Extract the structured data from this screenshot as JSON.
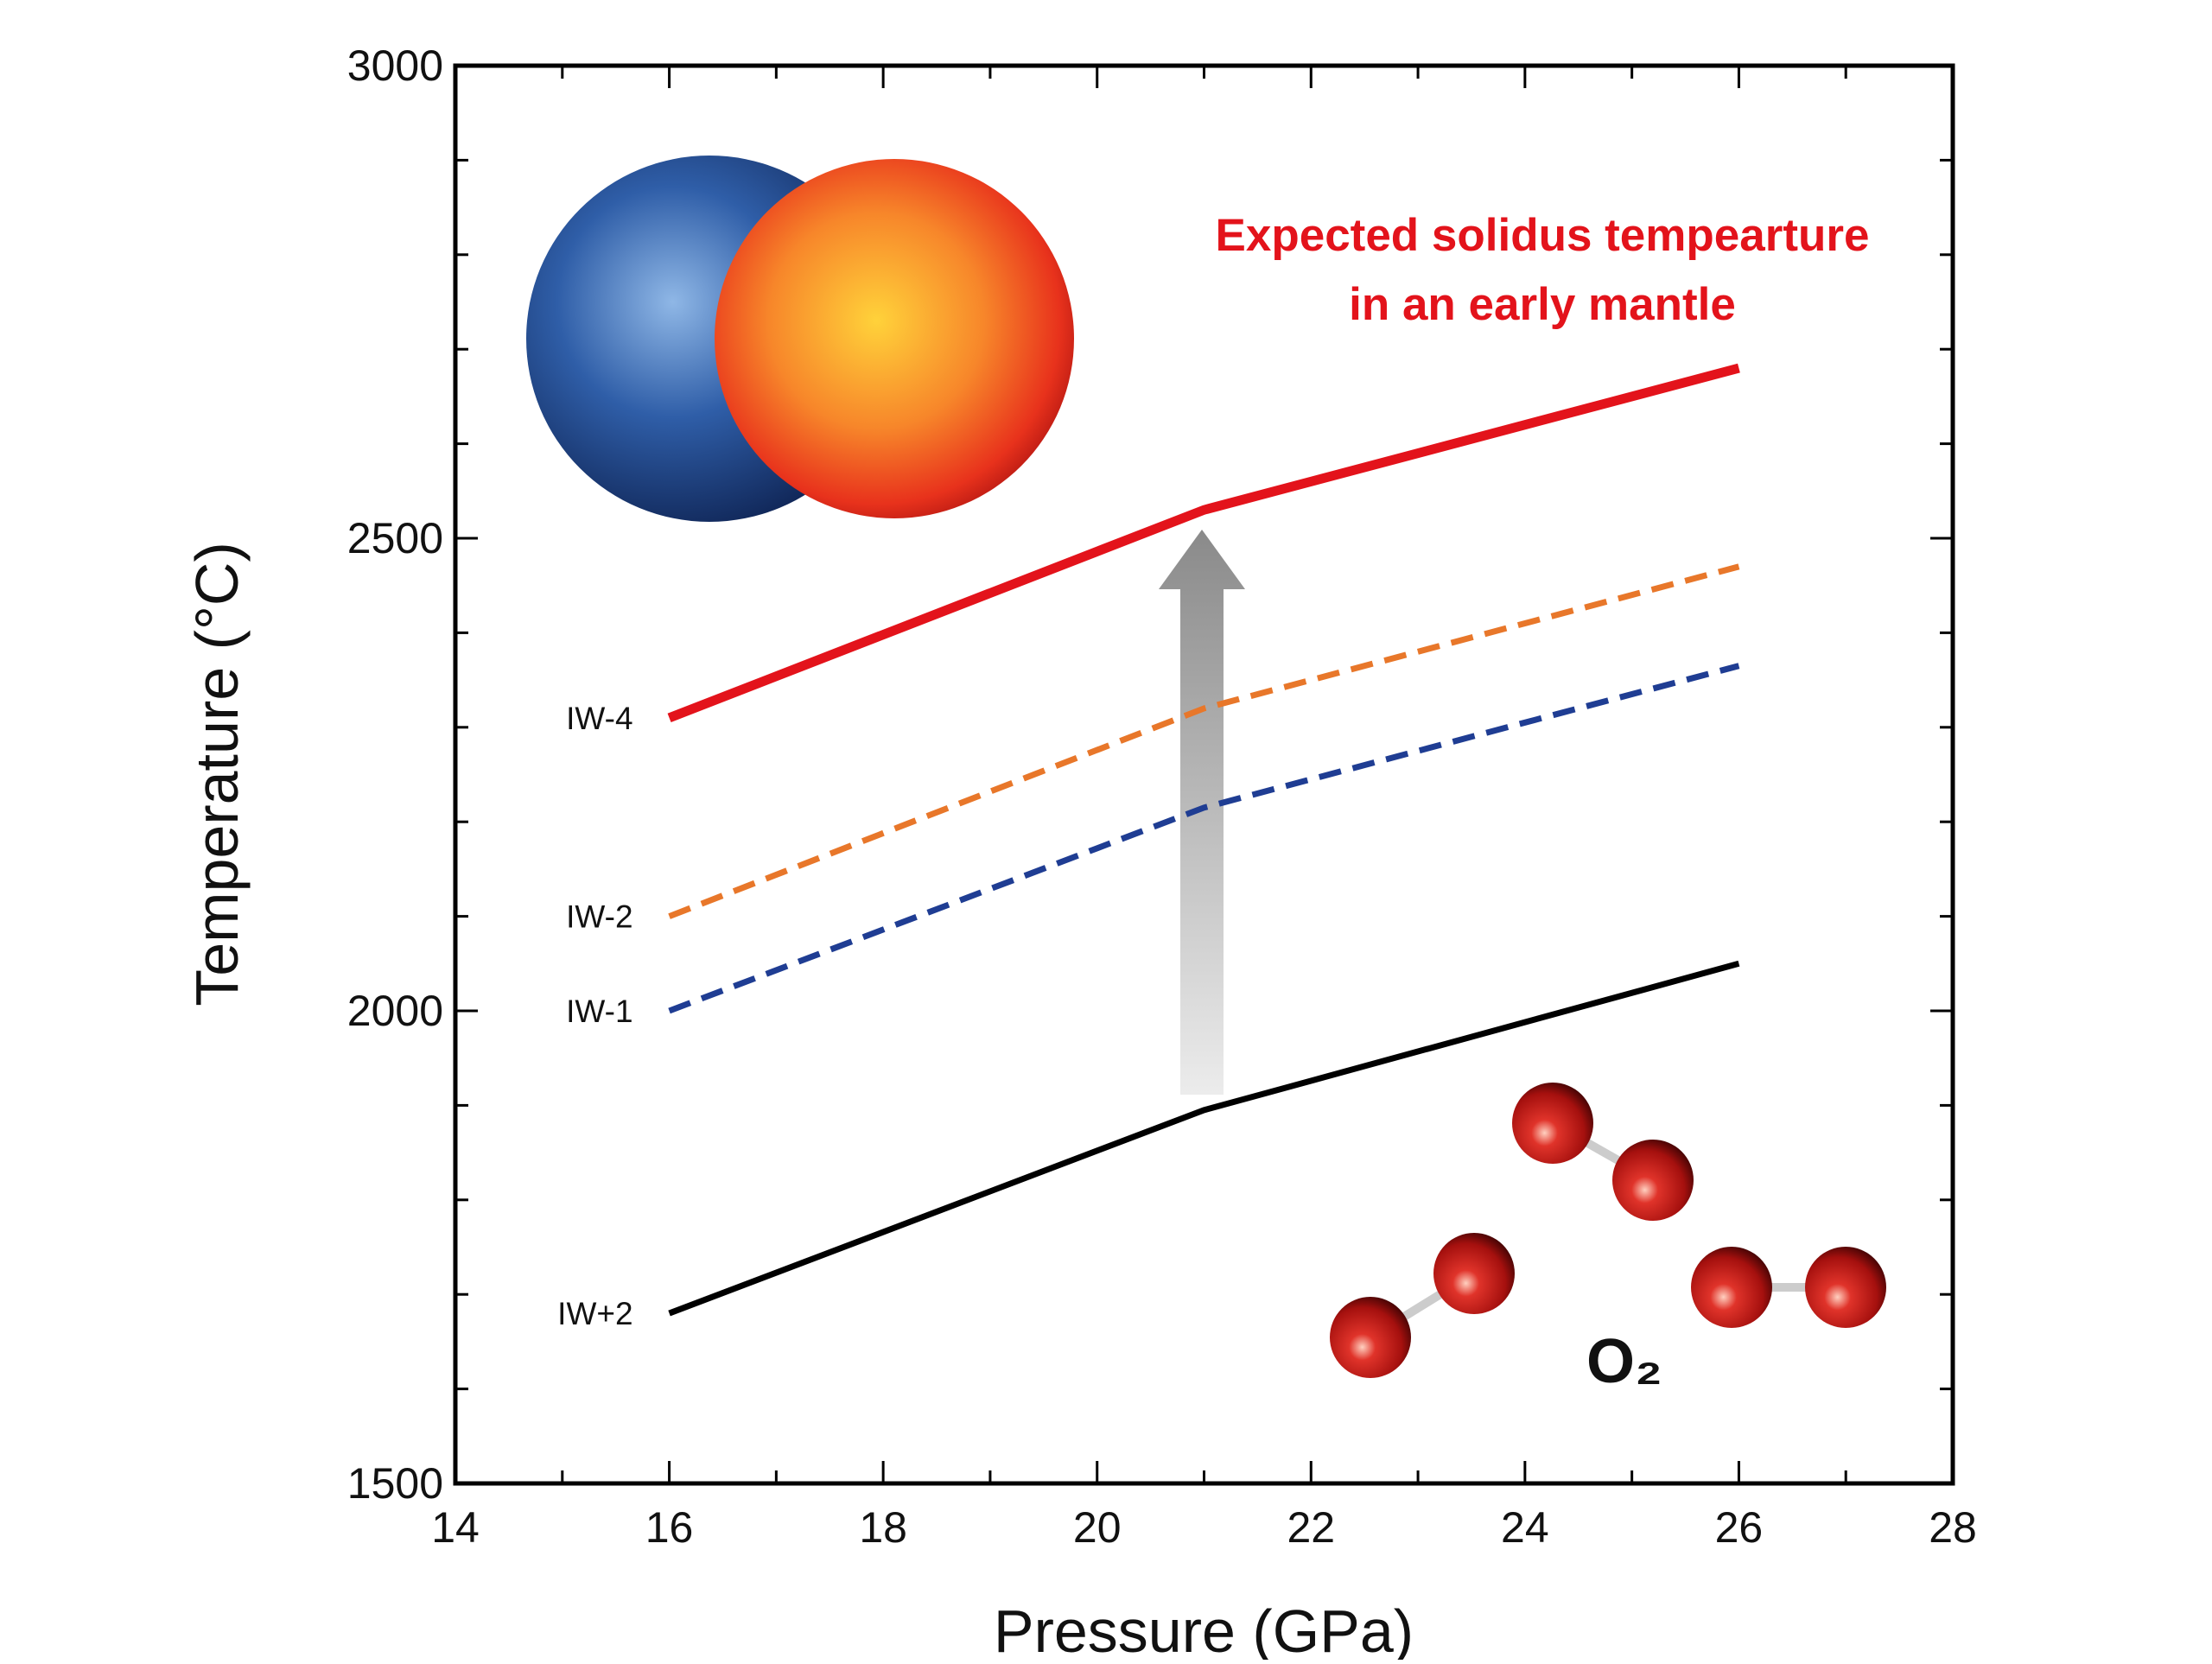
{
  "chart_data": {
    "type": "line",
    "x_label": "Pressure (GPa)",
    "y_label": "Temperature (°C)",
    "annotation": [
      "Expected solidus tempearture",
      "in an early mantle"
    ],
    "molecule_label": "O₂",
    "x": [
      16,
      21,
      26
    ],
    "series": [
      {
        "name": "IW-4",
        "color": "#e3131b",
        "linestyle": "solid",
        "values": [
          2310,
          2530,
          2680
        ]
      },
      {
        "name": "IW-2",
        "color": "#e8772a",
        "linestyle": "dashed",
        "values": [
          2100,
          2320,
          2470
        ]
      },
      {
        "name": "IW-1",
        "color": "#1f3d93",
        "linestyle": "dashed",
        "values": [
          2000,
          2215,
          2365
        ]
      },
      {
        "name": "IW+2",
        "color": "#000000",
        "linestyle": "solid",
        "values": [
          1680,
          1895,
          2050
        ]
      }
    ],
    "xlim": [
      14,
      28
    ],
    "xticks": [
      14,
      16,
      18,
      20,
      22,
      24,
      26,
      28
    ],
    "ylim": [
      1500,
      3000
    ],
    "yticks": [
      1500,
      2000,
      2500,
      3000
    ]
  }
}
